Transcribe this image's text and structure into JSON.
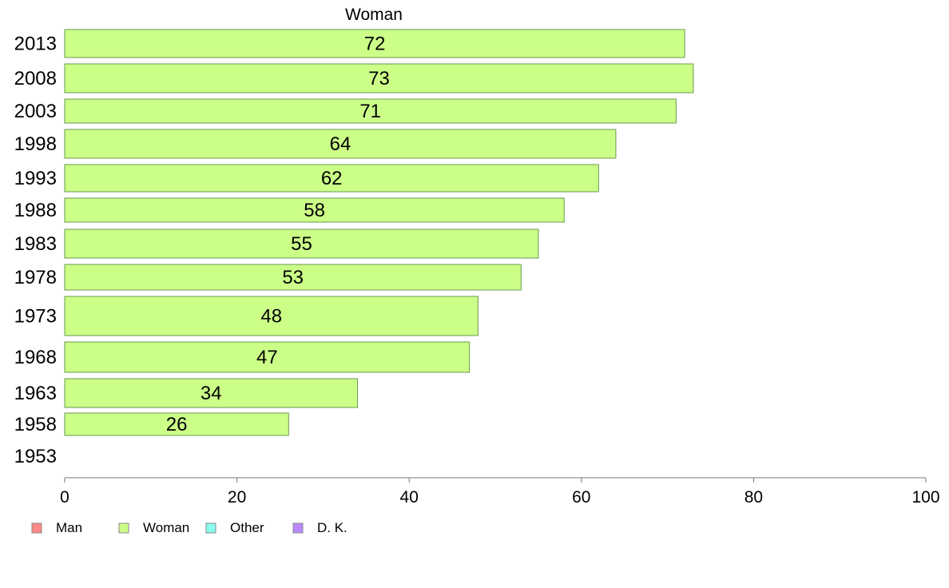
{
  "chart_data": {
    "type": "bar",
    "orientation": "horizontal",
    "title": "Woman",
    "categories": [
      "2013",
      "2008",
      "2003",
      "1998",
      "1993",
      "1988",
      "1983",
      "1978",
      "1973",
      "1968",
      "1963",
      "1958",
      "1953"
    ],
    "values": [
      72,
      73,
      71,
      64,
      62,
      58,
      55,
      53,
      48,
      47,
      34,
      26,
      null
    ],
    "data_labels": [
      "72",
      "73",
      "71",
      "64",
      "62",
      "58",
      "55",
      "53",
      "48",
      "47",
      "34",
      "26",
      ""
    ],
    "xlim": [
      0,
      100
    ],
    "x_ticks": [
      "0",
      "20",
      "40",
      "60",
      "80",
      "100"
    ],
    "xlabel": "",
    "ylabel": "",
    "grid": false,
    "bar_color": "#ccff88",
    "bar_stroke": "#6a9a50",
    "legend": {
      "placement": "bottom-left",
      "items": [
        {
          "label": "Man",
          "color": "#ff8888"
        },
        {
          "label": "Woman",
          "color": "#ccff88"
        },
        {
          "label": "Other",
          "color": "#88ffee"
        },
        {
          "label": "D. K.",
          "color": "#bb88ff"
        }
      ]
    }
  }
}
